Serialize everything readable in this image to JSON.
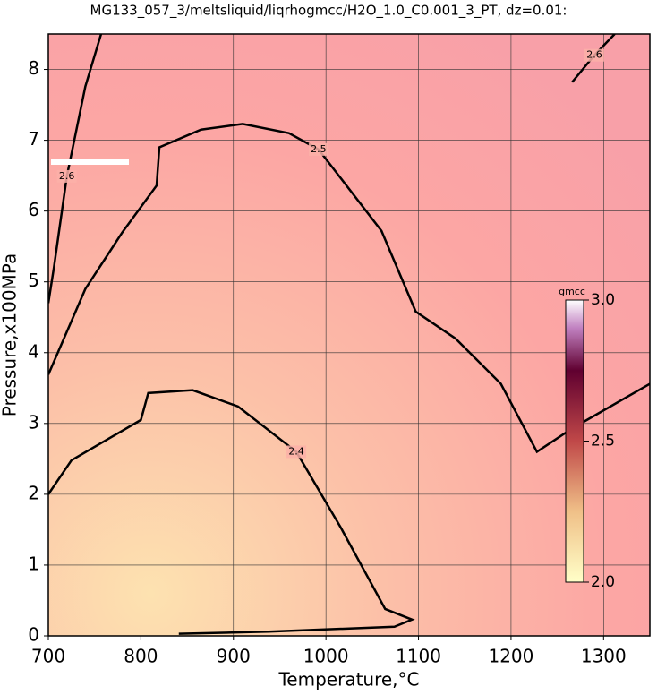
{
  "chart_data": {
    "type": "contour",
    "title": "MG133_057_3/meltsliquid/liqrhogmcc/H2O_1.0_C0.001_3_PT, dz=0.01:",
    "x_label": "Temperature,°C",
    "y_label": "Pressure,x100MPa",
    "xlim": [
      700,
      1350
    ],
    "ylim": [
      0,
      8.5
    ],
    "xticks": [
      700,
      800,
      900,
      1000,
      1100,
      1200,
      1300
    ],
    "yticks": [
      0,
      1,
      2,
      3,
      4,
      5,
      6,
      7,
      8
    ],
    "grid": true,
    "colorbar": {
      "label": "gmcc",
      "lim": [
        2.0,
        3.0
      ],
      "ticks": [
        {
          "value": 2.0,
          "label": "2.0"
        },
        {
          "value": 2.5,
          "label": "2.5"
        },
        {
          "value": 3.0,
          "label": "3.0"
        }
      ]
    },
    "series": [
      {
        "name": "2.4",
        "color": "#000000",
        "x": [
          700,
          725,
          800,
          808,
          856,
          905,
          968,
          1016,
          1064,
          1093,
          1074,
          938,
          841
        ],
        "y": [
          2.0,
          2.48,
          3.05,
          3.43,
          3.47,
          3.24,
          2.6,
          1.53,
          0.38,
          0.23,
          0.13,
          0.06,
          0.03
        ]
      },
      {
        "name": "2.5",
        "color": "#000000",
        "x": [
          700,
          740,
          780,
          817,
          820,
          865,
          910,
          960,
          992,
          1060,
          1097,
          1140,
          1189,
          1228,
          1266,
          1350
        ],
        "y": [
          3.69,
          4.9,
          5.7,
          6.36,
          6.9,
          7.15,
          7.23,
          7.1,
          6.87,
          5.72,
          4.58,
          4.2,
          3.56,
          2.6,
          2.93,
          3.56
        ]
      },
      {
        "name": "2.6",
        "color": "#000000",
        "x": [
          700,
          706,
          720,
          740,
          757
        ],
        "y": [
          4.7,
          5.2,
          6.49,
          7.76,
          8.5
        ]
      },
      {
        "name": "2.6",
        "color": "#000000",
        "x": [
          1266,
          1290,
          1312
        ],
        "y": [
          7.82,
          8.2,
          8.5
        ]
      }
    ]
  }
}
